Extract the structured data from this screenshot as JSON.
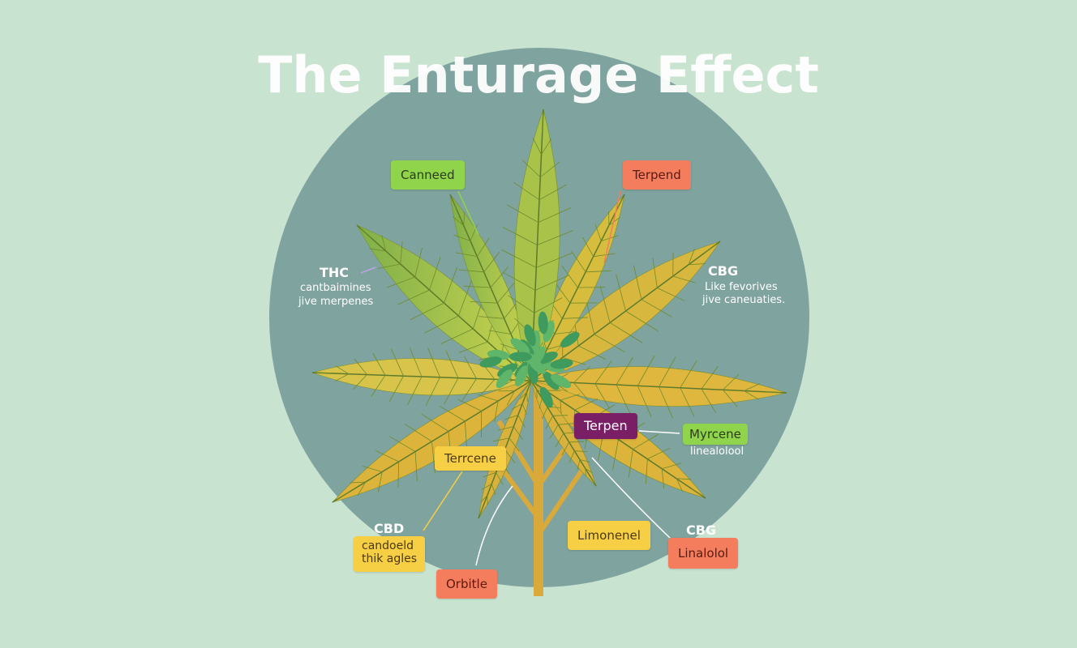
{
  "title": "The Enturage Effect",
  "colors": {
    "background": "#c9e3d1",
    "circle": "#7fa39e",
    "green": "#8fd44a",
    "orange": "#f47d5e",
    "yellow": "#f7cf45",
    "purple": "#7a1f66"
  },
  "labels": {
    "canneed": "Canneed",
    "terpend": "Terpend",
    "thc": {
      "heading": "THC",
      "line1": "cantbaimines",
      "line2": "jive merpenes"
    },
    "cbg_top": {
      "heading": "CBG",
      "line1": "Like fevorives",
      "line2": "jive caneuaties."
    },
    "terpen": "Terpen",
    "myrcene": "Myrcene",
    "myrcene_sub": "linealolool",
    "terrcene": "Terrcene",
    "cbd": {
      "heading": "CBD",
      "line1": "candoeld",
      "line2": "thik agles"
    },
    "orbitle": "Orbitle",
    "limonenel": "Limonenel",
    "cbg_bottom": {
      "heading": "CBG",
      "box": "Linalolol"
    }
  }
}
